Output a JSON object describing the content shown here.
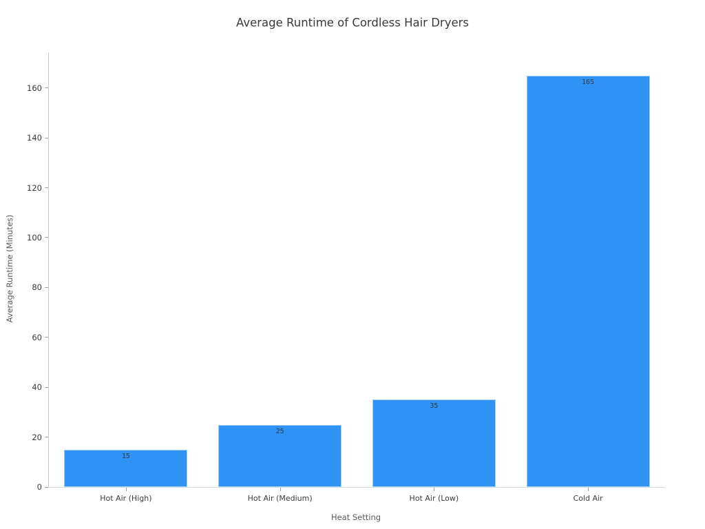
{
  "chart_data": {
    "type": "bar",
    "title": "Average Runtime of Cordless Hair Dryers",
    "xlabel": "Heat Setting",
    "ylabel": "Average Runtime (Minutes)",
    "categories": [
      "Hot Air (High)",
      "Hot Air (Medium)",
      "Hot Air (Low)",
      "Cold Air"
    ],
    "values": [
      15,
      25,
      35,
      165
    ],
    "bar_value_labels": [
      "15",
      "25",
      "35",
      "165"
    ],
    "yticks": [
      0,
      20,
      40,
      60,
      80,
      100,
      120,
      140,
      160
    ],
    "ylim": [
      0,
      174.3
    ],
    "grid": false,
    "legend": false,
    "bar_color": "#2E93F5",
    "bar_edge_color": "#9FCBF6",
    "title_color": "#3a3a3a",
    "axis_label_color": "#595959",
    "tick_label_color": "#3a3a3a",
    "value_label_color": "#343a3f",
    "spine_color": "#d9d9d9",
    "bar_width_fraction": 0.8
  }
}
